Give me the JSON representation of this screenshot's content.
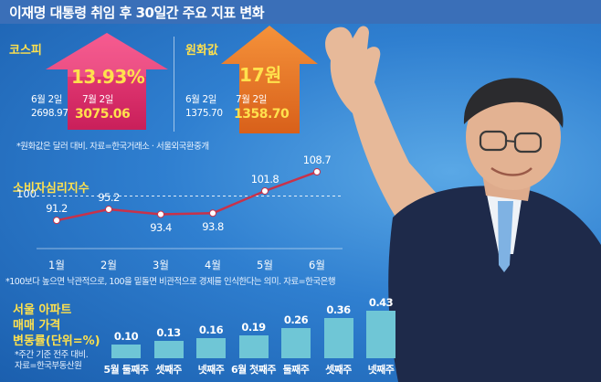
{
  "header": {
    "title": "이재명 대통령 취임 후 30일간 주요 지표 변화"
  },
  "kospi": {
    "label": "코스피",
    "change": "13.93%",
    "date_before": "6월 2일",
    "value_before": "2698.97",
    "date_after": "7월 2일",
    "value_after": "3075.06",
    "color": "#e8336f"
  },
  "won": {
    "label": "원화값",
    "change": "17원",
    "date_before": "6월 2일",
    "value_before": "1375.70",
    "date_after": "7월 2일",
    "value_after": "1358.70",
    "color": "#f07a2a"
  },
  "notes": {
    "fx": "*원화값은 달러 대비. 자료=한국거래소 · 서울외국환중개",
    "csi": "*100보다 높으면 낙관적으로, 100을 밑돌면 비관적으로 경제를 인식한다는 의미. 자료=한국은행",
    "apt": [
      "*주간 기준 전주 대비.",
      "자료=한국부동산원"
    ]
  },
  "chart_data": [
    {
      "type": "line",
      "title": "소비자심리지수",
      "categories": [
        "1월",
        "2월",
        "3월",
        "4월",
        "5월",
        "6월"
      ],
      "values": [
        91.2,
        95.2,
        93.4,
        93.8,
        101.8,
        108.7
      ],
      "value_labels": [
        "91.2",
        "95.2",
        "93.4",
        "93.8",
        "101.8",
        "108.7"
      ],
      "reference_line": {
        "value": 100,
        "label": "100"
      },
      "ylim": [
        85,
        112
      ],
      "line_color": "#c8324a",
      "marker_color": "#ffffff"
    },
    {
      "type": "bar",
      "title": [
        "서울 아파트",
        "매매 가격",
        "변동률(단위=%)"
      ],
      "categories": [
        "5월 둘째주",
        "셋째주",
        "넷째주",
        "6월 첫째주",
        "둘째주",
        "셋째주",
        "넷째주"
      ],
      "values": [
        0.1,
        0.13,
        0.16,
        0.19,
        0.26,
        0.36,
        0.43
      ],
      "value_labels": [
        "0.10",
        "0.13",
        "0.16",
        "0.19",
        "0.26",
        "0.36",
        "0.43"
      ],
      "ylim": [
        0,
        0.43
      ],
      "bar_color": "#6fc6d6"
    }
  ]
}
